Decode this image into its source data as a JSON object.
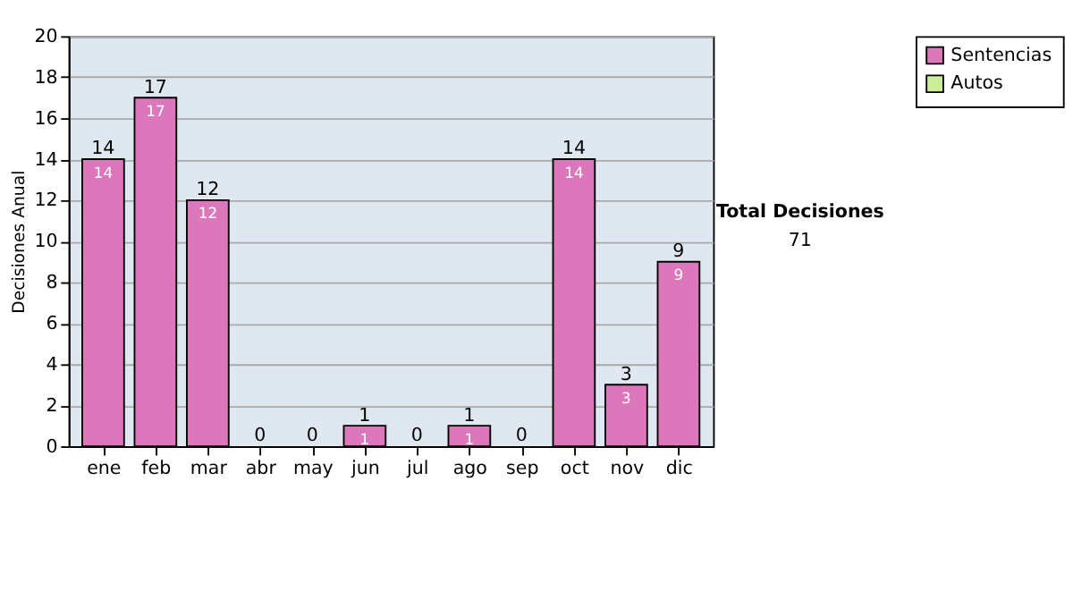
{
  "chart_data": {
    "type": "bar",
    "stacked": true,
    "ylabel": "Decisiones Anual",
    "categories": [
      "ene",
      "feb",
      "mar",
      "abr",
      "may",
      "jun",
      "jul",
      "ago",
      "sep",
      "oct",
      "nov",
      "dic"
    ],
    "series": [
      {
        "name": "Sentencias",
        "color": "#dd77bb",
        "values": [
          14,
          17,
          12,
          0,
          0,
          1,
          0,
          1,
          0,
          14,
          3,
          9
        ],
        "value_labels": [
          "14",
          "17",
          "12",
          null,
          null,
          "1",
          null,
          "1",
          null,
          "14",
          "3",
          "9"
        ]
      },
      {
        "name": "Autos",
        "color": "#ccee99",
        "values": [
          0,
          0,
          0,
          0,
          0,
          0,
          0,
          0,
          0,
          0,
          0,
          0
        ]
      }
    ],
    "totals": [
      "14",
      "17",
      "12",
      "0",
      "0",
      "1",
      "0",
      "1",
      "0",
      "14",
      "3",
      "9"
    ],
    "ylim": [
      0,
      20
    ],
    "yticks": [
      0,
      2,
      4,
      6,
      8,
      10,
      12,
      14,
      16,
      18,
      20
    ],
    "grid": "y",
    "legend": "right",
    "annotations": [
      "Total Decisiones",
      "71"
    ]
  }
}
